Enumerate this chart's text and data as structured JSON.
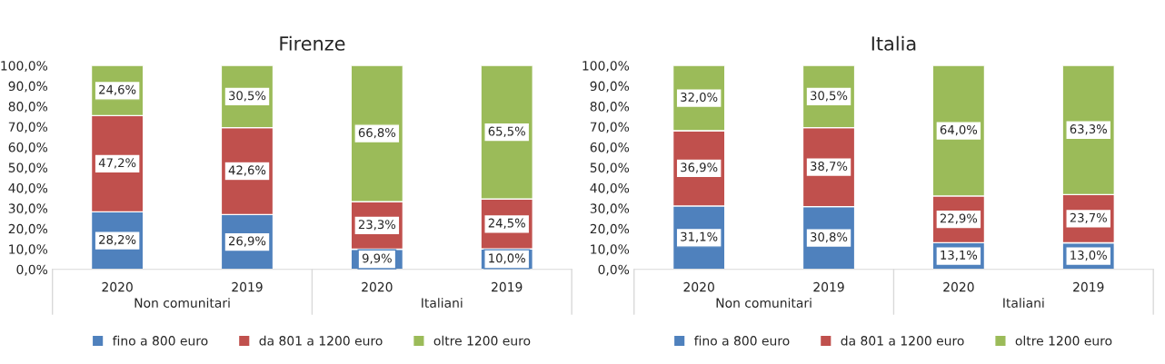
{
  "chart_data": [
    {
      "type": "bar",
      "title": "Firenze",
      "stacked": true,
      "categories": [
        "2020",
        "2019",
        "2020",
        "2019"
      ],
      "series": [
        {
          "name": "fino a 800 euro",
          "color": "#4f81bd",
          "values": [
            28.2,
            26.9,
            9.9,
            10.0
          ],
          "value_labels": [
            "28,2%",
            "26,9%",
            "9,9%",
            "10,0%"
          ]
        },
        {
          "name": "da 801 a 1200 euro",
          "color": "#c0504d",
          "values": [
            47.2,
            42.6,
            23.3,
            24.5
          ],
          "value_labels": [
            "47,2%",
            "42,6%",
            "23,3%",
            "24,5%"
          ]
        },
        {
          "name": "oltre 1200 euro",
          "color": "#9bbb59",
          "values": [
            24.6,
            30.5,
            66.8,
            65.5
          ],
          "value_labels": [
            "24,6%",
            "30,5%",
            "66,8%",
            "65,5%"
          ]
        }
      ],
      "ylim": [
        0,
        100
      ],
      "yticks": [
        {
          "value": 0,
          "label": "0,0%"
        },
        {
          "value": 10,
          "label": "10,0%"
        },
        {
          "value": 20,
          "label": "20,0%"
        },
        {
          "value": 30,
          "label": "30,0%"
        },
        {
          "value": 40,
          "label": "40,0%"
        },
        {
          "value": 50,
          "label": "50,0%"
        },
        {
          "value": 60,
          "label": "60,0%"
        },
        {
          "value": 70,
          "label": "70,0%"
        },
        {
          "value": 80,
          "label": "80,0%"
        },
        {
          "value": 90,
          "label": "90,0%"
        },
        {
          "value": 100,
          "label": "100,0%"
        }
      ],
      "annotations": [
        "Non comunitari",
        "Italiani"
      ],
      "legend": "bottom",
      "grid": false
    },
    {
      "type": "bar",
      "title": "Italia",
      "stacked": true,
      "categories": [
        "2020",
        "2019",
        "2020",
        "2019"
      ],
      "series": [
        {
          "name": "fino a 800 euro",
          "color": "#4f81bd",
          "values": [
            31.1,
            30.8,
            13.1,
            13.0
          ],
          "value_labels": [
            "31,1%",
            "30,8%",
            "13,1%",
            "13,0%"
          ]
        },
        {
          "name": "da 801 a 1200 euro",
          "color": "#c0504d",
          "values": [
            36.9,
            38.7,
            22.9,
            23.7
          ],
          "value_labels": [
            "36,9%",
            "38,7%",
            "22,9%",
            "23,7%"
          ]
        },
        {
          "name": "oltre 1200 euro",
          "color": "#9bbb59",
          "values": [
            32.0,
            30.5,
            64.0,
            63.3
          ],
          "value_labels": [
            "32,0%",
            "30,5%",
            "64,0%",
            "63,3%"
          ]
        }
      ],
      "ylim": [
        0,
        100
      ],
      "yticks": [
        {
          "value": 0,
          "label": "0,0%"
        },
        {
          "value": 10,
          "label": "10,0%"
        },
        {
          "value": 20,
          "label": "20,0%"
        },
        {
          "value": 30,
          "label": "30,0%"
        },
        {
          "value": 40,
          "label": "40,0%"
        },
        {
          "value": 50,
          "label": "50,0%"
        },
        {
          "value": 60,
          "label": "60,0%"
        },
        {
          "value": 70,
          "label": "70,0%"
        },
        {
          "value": 80,
          "label": "80,0%"
        },
        {
          "value": 90,
          "label": "90,0%"
        },
        {
          "value": 100,
          "label": "100,0%"
        }
      ],
      "annotations": [
        "Non comunitari",
        "Italiani"
      ],
      "legend": "bottom",
      "grid": false
    }
  ]
}
